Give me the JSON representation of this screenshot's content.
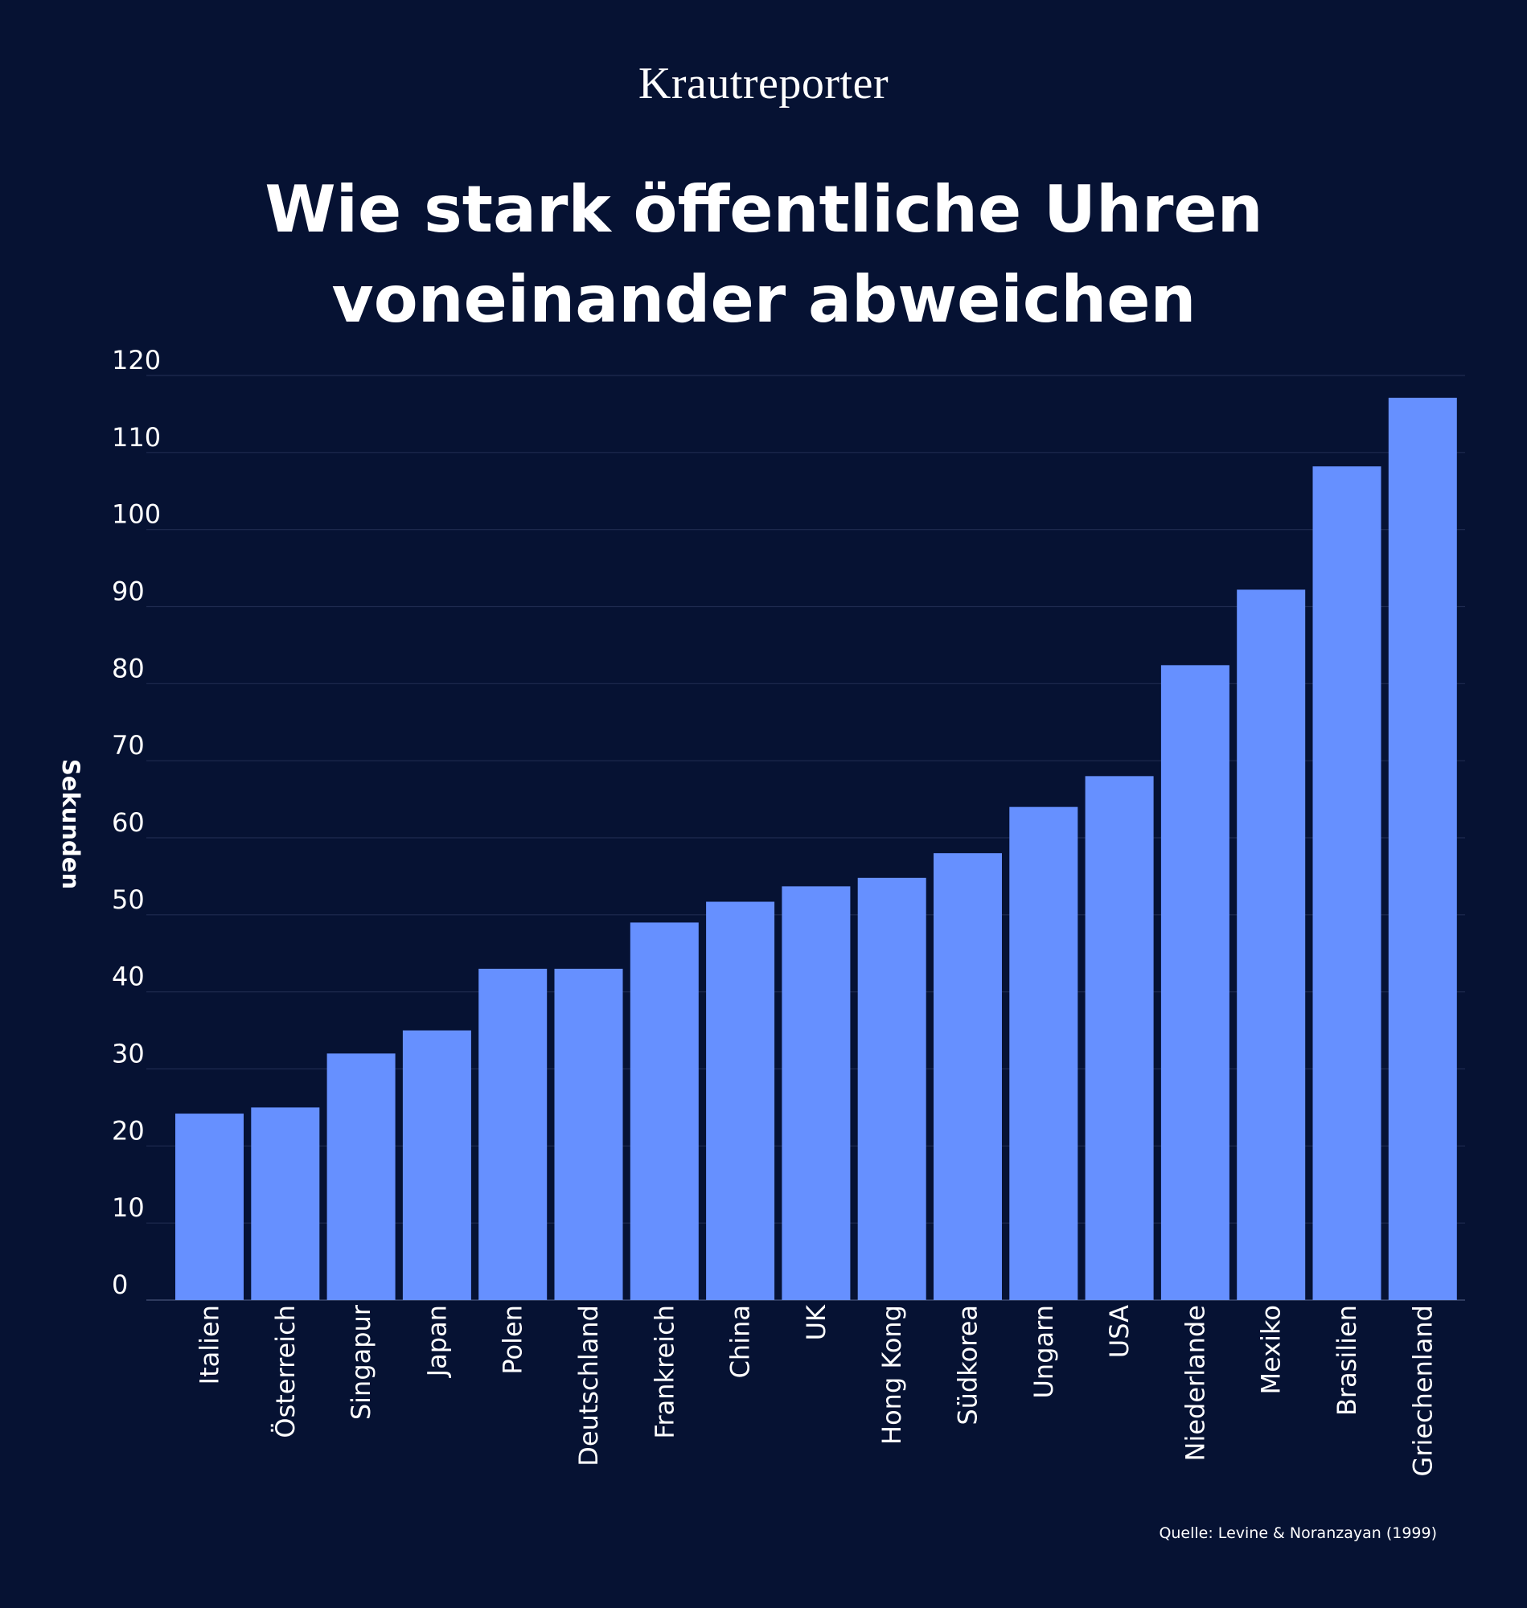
{
  "brand": "Krautreporter",
  "source": "Quelle: Levine & Noranzayan (1999)",
  "colors": {
    "background": "#061233",
    "bar": "#6690FF",
    "grid": "#1F2B50",
    "text": "#FFFFFF"
  },
  "chart_data": {
    "type": "bar",
    "title": "Wie stark öffentliche Uhren voneinander abweichen",
    "xlabel": "",
    "ylabel": "Sekunden",
    "ylim": [
      0,
      120
    ],
    "yticks": [
      0,
      10,
      20,
      30,
      40,
      50,
      60,
      70,
      80,
      90,
      100,
      110,
      120
    ],
    "grid": true,
    "categories": [
      "Italien",
      "Österreich",
      "Singapur",
      "Japan",
      "Polen",
      "Deutschland",
      "Frankreich",
      "China",
      "UK",
      "Hong Kong",
      "Südkorea",
      "Ungarn",
      "USA",
      "Niederlande",
      "Mexiko",
      "Brasilien",
      "Griechenland"
    ],
    "values": [
      24.2,
      25,
      32,
      35,
      43,
      43,
      49,
      51.7,
      53.7,
      54.8,
      58,
      64,
      68,
      82.4,
      92.2,
      108.2,
      117.1
    ]
  }
}
